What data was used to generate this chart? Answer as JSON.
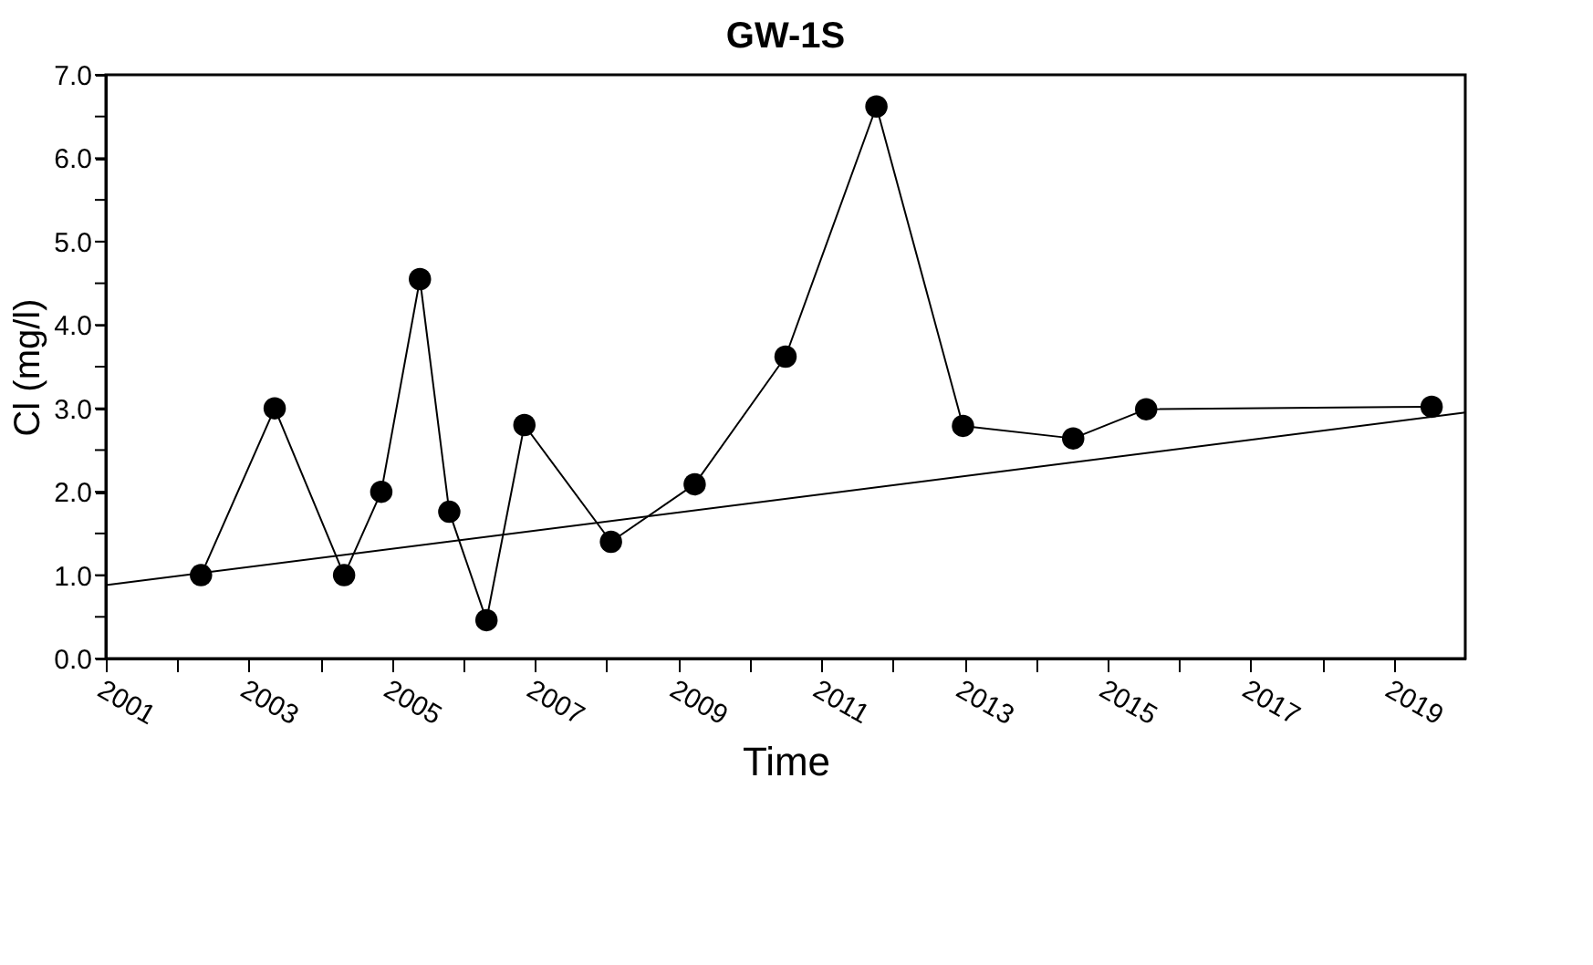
{
  "chart_data": {
    "type": "line",
    "title": "GW-1S",
    "xlabel": "Time",
    "ylabel": "Cl (mg/l)",
    "xlim": [
      2001,
      2020
    ],
    "ylim": [
      0,
      7
    ],
    "xticks": [
      2001,
      {
        "value": 2002,
        "label": null
      },
      2003,
      {
        "value": 2004,
        "label": null
      },
      2005,
      {
        "value": 2006,
        "label": null
      },
      2007,
      {
        "value": 2008,
        "label": null
      },
      2009,
      {
        "value": 2010,
        "label": null
      },
      2011,
      {
        "value": 2012,
        "label": null
      },
      2013,
      {
        "value": 2014,
        "label": null
      },
      2015,
      {
        "value": 2016,
        "label": null
      },
      2017,
      {
        "value": 2018,
        "label": null
      },
      2019
    ],
    "yticks": [
      {
        "value": 0,
        "label": "0.0"
      },
      {
        "value": 0.5,
        "label": null
      },
      {
        "value": 1,
        "label": "1.0"
      },
      {
        "value": 1.5,
        "label": null
      },
      {
        "value": 2,
        "label": "2.0"
      },
      {
        "value": 2.5,
        "label": null
      },
      {
        "value": 3,
        "label": "3.0"
      },
      {
        "value": 3.5,
        "label": null
      },
      {
        "value": 4,
        "label": "4.0"
      },
      {
        "value": 4.5,
        "label": null
      },
      {
        "value": 5,
        "label": "5.0"
      },
      {
        "value": 5.5,
        "label": null
      },
      {
        "value": 6,
        "label": "6.0"
      },
      {
        "value": 6.5,
        "label": null
      },
      {
        "value": 7,
        "label": "7.0"
      }
    ],
    "grid": false,
    "legend": false,
    "series": [
      {
        "type": "line",
        "color": "#000000",
        "marker": "circle",
        "x": [
          2002.33,
          2003.36,
          2004.33,
          2004.85,
          2005.39,
          2005.8,
          2006.32,
          2006.85,
          2008.06,
          2009.23,
          2010.5,
          2011.77,
          2012.98,
          2014.52,
          2015.54,
          2019.53
        ],
        "values": [
          1.0,
          3.0,
          1.0,
          2.0,
          4.55,
          1.76,
          0.46,
          2.8,
          1.4,
          2.09,
          3.62,
          6.62,
          2.79,
          2.64,
          2.99,
          3.02
        ]
      },
      {
        "type": "line",
        "color": "#000000",
        "marker": "none",
        "x": [
          2001,
          2020
        ],
        "values": [
          0.88,
          2.95
        ]
      }
    ]
  }
}
